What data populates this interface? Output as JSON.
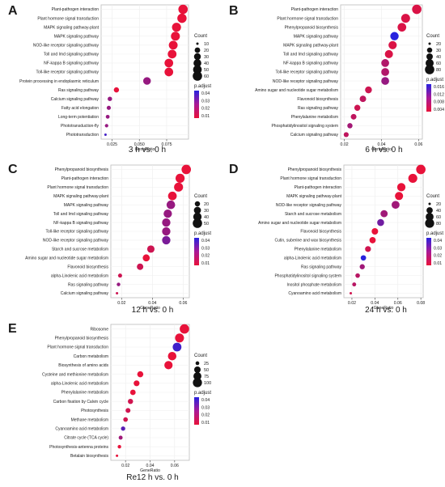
{
  "chart_data": [
    {
      "type": "scatter",
      "panel": "A",
      "caption": "3 h vs. 0 h",
      "xlabel": "GeneRatio",
      "xlim": [
        0.015,
        0.095
      ],
      "xticks": [
        0.025,
        0.05,
        0.075
      ],
      "xtick_labels": [
        "0.025",
        "0.050",
        "0.075"
      ],
      "terms": [
        "Plant-pathogen interaction",
        "Plant hormone signal transduction",
        "MAPK signaling pathway-plant",
        "MAPK signaling pathway",
        "NOD-like receptor signaling pathway",
        "Toll and Imd signaling pathway",
        "NF-kappa B signaling pathway",
        "Toll-like receptor signaling pathway",
        "Protein processing in endoplasmic reticulum",
        "Ras signaling pathway",
        "Calcium signaling pathway",
        "Fatty acid elongation",
        "Long-term potentiation",
        "Phototransduction-fly",
        "Phototransduction"
      ],
      "x": [
        0.09,
        0.089,
        0.084,
        0.083,
        0.081,
        0.08,
        0.077,
        0.077,
        0.057,
        0.029,
        0.023,
        0.022,
        0.021,
        0.02,
        0.019
      ],
      "count": [
        60,
        58,
        55,
        54,
        52,
        51,
        50,
        50,
        38,
        18,
        14,
        13,
        12,
        11,
        10
      ],
      "padj": [
        0.005,
        0.005,
        0.005,
        0.005,
        0.005,
        0.005,
        0.005,
        0.005,
        0.02,
        0.005,
        0.02,
        0.02,
        0.02,
        0.02,
        0.035
      ],
      "size_legend": {
        "title": "Count",
        "values": [
          10,
          20,
          30,
          40,
          50,
          60
        ]
      },
      "color_legend": {
        "title": "p.adjust",
        "ticks": [
          "0.04",
          "0.03",
          "0.02",
          "0.01"
        ],
        "min": 0.005,
        "max": 0.04
      }
    },
    {
      "type": "scatter",
      "panel": "B",
      "caption": "6 h vs. 0 h",
      "xlabel": "GeneRatio",
      "xlim": [
        0.018,
        0.062
      ],
      "xticks": [
        0.02,
        0.04,
        0.06
      ],
      "xtick_labels": [
        "0.02",
        "0.04",
        "0.06"
      ],
      "terms": [
        "Plant-pathogen interaction",
        "Plant hormone signal transduction",
        "Phenylpropanoid biosynthesis",
        "MAPK signaling pathway",
        "MAPK signaling pathway-plant",
        "Toll and Imd signaling pathway",
        "NF-kappa B signaling pathway",
        "Toll-like receptor signaling pathway",
        "NOD-like receptor signaling pathway",
        "Amino sugar and nucleotide sugar metabolism",
        "Flavonoid biosynthesis",
        "Ras signaling pathway",
        "Phenylalanine metabolism",
        "Phosphatidylinositol signaling system",
        "Calcium signaling pathway"
      ],
      "x": [
        0.059,
        0.053,
        0.051,
        0.047,
        0.046,
        0.044,
        0.042,
        0.042,
        0.042,
        0.033,
        0.03,
        0.027,
        0.025,
        0.023,
        0.021
      ],
      "count": [
        80,
        72,
        68,
        64,
        62,
        60,
        57,
        57,
        56,
        44,
        40,
        36,
        33,
        30,
        28
      ],
      "padj": [
        0.003,
        0.003,
        0.003,
        0.016,
        0.003,
        0.003,
        0.006,
        0.006,
        0.008,
        0.004,
        0.005,
        0.004,
        0.005,
        0.007,
        0.005
      ],
      "size_legend": {
        "title": "Count",
        "values": [
          20,
          30,
          40,
          60,
          80
        ]
      },
      "color_legend": {
        "title": "p.adjust",
        "ticks": [
          "0.016",
          "0.012",
          "0.008",
          "0.004"
        ],
        "min": 0.002,
        "max": 0.016
      }
    },
    {
      "type": "scatter",
      "panel": "C",
      "caption": "12 h vs. 0 h",
      "xlabel": "GeneRatio",
      "xlim": [
        0.013,
        0.064
      ],
      "xticks": [
        0.02,
        0.04,
        0.06
      ],
      "xtick_labels": [
        "0.02",
        "0.04",
        "0.06"
      ],
      "terms": [
        "Phenylpropanoid biosynthesis",
        "Plant-pathogen interaction",
        "Plant hormone signal transduction",
        "MAPK signaling pathway-plant",
        "MAPK signaling pathway",
        "Toll and Imd signaling pathway",
        "NF-kappa B signaling pathway",
        "Toll-like receptor signaling pathway",
        "NOD-like receptor signaling pathway",
        "Starch and sucrose metabolism",
        "Amino sugar and nucleotide sugar metabolism",
        "Flavonoid biosynthesis",
        "alpha-Linolenic acid metabolism",
        "Ras signaling pathway",
        "Calcium signaling pathway"
      ],
      "x": [
        0.062,
        0.058,
        0.057,
        0.053,
        0.052,
        0.05,
        0.049,
        0.049,
        0.049,
        0.039,
        0.036,
        0.032,
        0.019,
        0.018,
        0.017
      ],
      "count": [
        50,
        47,
        46,
        43,
        42,
        40,
        40,
        40,
        40,
        32,
        30,
        26,
        16,
        15,
        14
      ],
      "padj": [
        0.005,
        0.005,
        0.005,
        0.005,
        0.02,
        0.02,
        0.02,
        0.02,
        0.025,
        0.01,
        0.005,
        0.01,
        0.01,
        0.02,
        0.01
      ],
      "size_legend": {
        "title": "Count",
        "values": [
          20,
          30,
          40,
          50
        ]
      },
      "color_legend": {
        "title": "p.adjust",
        "ticks": [
          "0.04",
          "0.03",
          "0.02",
          "0.01"
        ],
        "min": 0.005,
        "max": 0.04
      }
    },
    {
      "type": "scatter",
      "panel": "D",
      "caption": "24 h vs. 0 h",
      "xlabel": "GeneRatio",
      "xlim": [
        0.013,
        0.082
      ],
      "xticks": [
        0.02,
        0.04,
        0.06,
        0.08
      ],
      "xtick_labels": [
        "0.02",
        "0.04",
        "0.06",
        "0.08"
      ],
      "terms": [
        "Phenylpropanoid biosynthesis",
        "Plant hormone signal transduction",
        "Plant-pathogen interaction",
        "MAPK signaling pathway-plant",
        "NOD-like receptor signaling pathway",
        "Starch and sucrose metabolism",
        "Amino sugar and nucleotide sugar metabolism",
        "Flavonoid biosynthesis",
        "Cutin, suberine and wax biosynthesis",
        "Phenylalanine metabolism",
        "alpha-Linolenic acid metabolism",
        "Ras signaling pathway",
        "Phosphatidylinositol signaling system",
        "Inositol phosphate metabolism",
        "Cyanoamino acid metabolism"
      ],
      "x": [
        0.08,
        0.073,
        0.063,
        0.061,
        0.058,
        0.048,
        0.045,
        0.04,
        0.038,
        0.034,
        0.03,
        0.029,
        0.025,
        0.022,
        0.019
      ],
      "count": [
        85,
        78,
        66,
        64,
        60,
        50,
        47,
        42,
        40,
        36,
        32,
        30,
        26,
        23,
        20
      ],
      "padj": [
        0.005,
        0.005,
        0.005,
        0.005,
        0.02,
        0.02,
        0.03,
        0.005,
        0.005,
        0.01,
        0.045,
        0.02,
        0.015,
        0.015,
        0.01
      ],
      "size_legend": {
        "title": "Count",
        "values": [
          20,
          40,
          60,
          80
        ]
      },
      "color_legend": {
        "title": "p.adjust",
        "ticks": [
          "0.04",
          "0.03",
          "0.02",
          "0.01"
        ],
        "min": 0.005,
        "max": 0.045
      }
    },
    {
      "type": "scatter",
      "panel": "E",
      "caption": "Re12 h vs. 0 h",
      "xlabel": "GeneRatio",
      "xlim": [
        0.008,
        0.072
      ],
      "xticks": [
        0.02,
        0.04,
        0.06
      ],
      "xtick_labels": [
        "0.02",
        "0.04",
        "0.06"
      ],
      "terms": [
        "Ribosome",
        "Phenylpropanoid biosynthesis",
        "Plant hormone signal transduction",
        "Carbon metabolism",
        "Biosynthesis of amino acids",
        "Cysteine and methionine metabolism",
        "alpha-Linolenic acid metabolism",
        "Phenylalanine metabolism",
        "Carbon fixation by Calvin cycle",
        "Photosynthesis",
        "Methane metabolism",
        "Cyanoamino acid metabolism",
        "Citrate cycle (TCA cycle)",
        "Photosynthesis-antenna proteins",
        "Betalain biosynthesis"
      ],
      "x": [
        0.068,
        0.064,
        0.062,
        0.058,
        0.055,
        0.032,
        0.029,
        0.026,
        0.024,
        0.022,
        0.02,
        0.018,
        0.016,
        0.015,
        0.013
      ],
      "count": [
        105,
        95,
        90,
        85,
        80,
        45,
        42,
        38,
        35,
        32,
        30,
        28,
        26,
        24,
        22
      ],
      "padj": [
        0.005,
        0.005,
        0.04,
        0.005,
        0.005,
        0.005,
        0.005,
        0.005,
        0.01,
        0.01,
        0.01,
        0.035,
        0.02,
        0.005,
        0.005
      ],
      "size_legend": {
        "title": "Count",
        "values": [
          25,
          50,
          75,
          100
        ]
      },
      "color_legend": {
        "title": "p.adjust",
        "ticks": [
          "0.04",
          "0.03",
          "0.02",
          "0.01"
        ],
        "min": 0.005,
        "max": 0.045
      }
    }
  ]
}
